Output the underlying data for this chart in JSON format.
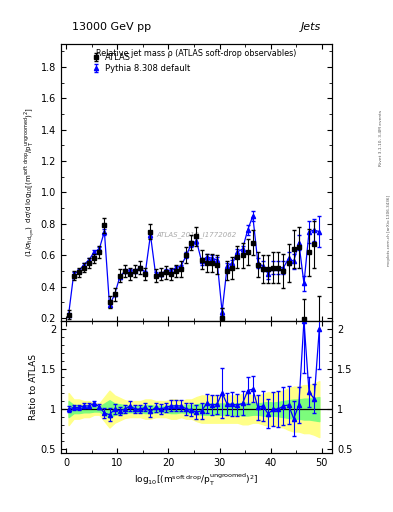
{
  "header_left": "13000 GeV pp",
  "header_right": "Jets",
  "right_label_top": "Rivet 3.1.10, 3.4M events",
  "right_label_bot": "mcplots.cern.ch [arXiv:1306.3436]",
  "inner_title": "Relative jet mass ρ (ATLAS soft-drop observables)",
  "watermark": "ATLAS_2019_I1772062",
  "legend_atlas": "ATLAS",
  "legend_pythia": "Pythia 8.308 default",
  "ylabel_ratio": "Ratio to ATLAS",
  "ylim_main": [
    0.18,
    1.95
  ],
  "ylim_ratio": [
    0.45,
    2.1
  ],
  "xlim": [
    -1.0,
    52.0
  ],
  "xticks": [
    0,
    10,
    20,
    30,
    40,
    50
  ],
  "yticks_main": [
    0.2,
    0.4,
    0.6,
    0.8,
    1.0,
    1.2,
    1.4,
    1.6,
    1.8
  ],
  "yticks_ratio": [
    0.5,
    1.0,
    1.5,
    2.0
  ],
  "atlas_x": [
    0.5,
    1.5,
    2.5,
    3.5,
    4.5,
    5.5,
    6.5,
    7.5,
    8.5,
    9.5,
    10.5,
    11.5,
    12.5,
    13.5,
    14.5,
    15.5,
    16.5,
    17.5,
    18.5,
    19.5,
    20.5,
    21.5,
    22.5,
    23.5,
    24.5,
    25.5,
    26.5,
    27.5,
    28.5,
    29.5,
    30.5,
    31.5,
    32.5,
    33.5,
    34.5,
    35.5,
    36.5,
    37.5,
    38.5,
    39.5,
    40.5,
    41.5,
    42.5,
    43.5,
    44.5,
    45.5,
    46.5,
    47.5,
    48.5,
    49.5
  ],
  "atlas_y": [
    0.22,
    0.47,
    0.49,
    0.52,
    0.55,
    0.58,
    0.62,
    0.79,
    0.3,
    0.35,
    0.47,
    0.5,
    0.48,
    0.5,
    0.52,
    0.48,
    0.75,
    0.47,
    0.48,
    0.49,
    0.48,
    0.5,
    0.51,
    0.6,
    0.68,
    0.72,
    0.57,
    0.55,
    0.55,
    0.54,
    0.2,
    0.5,
    0.52,
    0.59,
    0.6,
    0.62,
    0.68,
    0.54,
    0.51,
    0.51,
    0.52,
    0.52,
    0.5,
    0.55,
    0.64,
    0.65,
    0.19,
    0.62,
    0.67,
    0.16
  ],
  "atlas_yerr": [
    0.03,
    0.03,
    0.03,
    0.03,
    0.03,
    0.03,
    0.04,
    0.05,
    0.04,
    0.04,
    0.04,
    0.04,
    0.04,
    0.04,
    0.04,
    0.04,
    0.05,
    0.04,
    0.04,
    0.04,
    0.04,
    0.04,
    0.05,
    0.05,
    0.05,
    0.06,
    0.06,
    0.06,
    0.06,
    0.06,
    0.06,
    0.06,
    0.07,
    0.07,
    0.08,
    0.08,
    0.08,
    0.08,
    0.09,
    0.09,
    0.1,
    0.1,
    0.11,
    0.12,
    0.12,
    0.13,
    0.13,
    0.15,
    0.15,
    0.18
  ],
  "pythia_x": [
    0.5,
    1.5,
    2.5,
    3.5,
    4.5,
    5.5,
    6.5,
    7.5,
    8.5,
    9.5,
    10.5,
    11.5,
    12.5,
    13.5,
    14.5,
    15.5,
    16.5,
    17.5,
    18.5,
    19.5,
    20.5,
    21.5,
    22.5,
    23.5,
    24.5,
    25.5,
    26.5,
    27.5,
    28.5,
    29.5,
    30.5,
    31.5,
    32.5,
    33.5,
    34.5,
    35.5,
    36.5,
    37.5,
    38.5,
    39.5,
    40.5,
    41.5,
    42.5,
    43.5,
    44.5,
    45.5,
    46.5,
    47.5,
    48.5,
    49.5
  ],
  "pythia_y": [
    0.22,
    0.48,
    0.5,
    0.54,
    0.57,
    0.62,
    0.64,
    0.75,
    0.28,
    0.35,
    0.46,
    0.5,
    0.5,
    0.5,
    0.52,
    0.49,
    0.73,
    0.48,
    0.48,
    0.5,
    0.5,
    0.52,
    0.53,
    0.6,
    0.67,
    0.69,
    0.56,
    0.59,
    0.58,
    0.57,
    0.24,
    0.53,
    0.55,
    0.62,
    0.64,
    0.76,
    0.85,
    0.55,
    0.53,
    0.48,
    0.52,
    0.52,
    0.52,
    0.58,
    0.56,
    0.68,
    0.42,
    0.75,
    0.76,
    0.75
  ],
  "pythia_yerr": [
    0.01,
    0.01,
    0.01,
    0.01,
    0.01,
    0.01,
    0.01,
    0.02,
    0.01,
    0.01,
    0.01,
    0.01,
    0.01,
    0.01,
    0.01,
    0.01,
    0.02,
    0.01,
    0.01,
    0.01,
    0.01,
    0.01,
    0.01,
    0.02,
    0.02,
    0.02,
    0.02,
    0.02,
    0.02,
    0.02,
    0.02,
    0.02,
    0.02,
    0.02,
    0.02,
    0.03,
    0.03,
    0.03,
    0.03,
    0.03,
    0.04,
    0.04,
    0.04,
    0.04,
    0.05,
    0.05,
    0.05,
    0.07,
    0.07,
    0.1
  ],
  "ratio_y": [
    1.0,
    1.02,
    1.02,
    1.04,
    1.04,
    1.07,
    1.03,
    0.95,
    0.93,
    1.0,
    0.98,
    1.0,
    1.04,
    1.0,
    1.0,
    1.02,
    0.97,
    1.02,
    1.0,
    1.02,
    1.04,
    1.04,
    1.04,
    1.0,
    0.99,
    0.96,
    0.98,
    1.07,
    1.05,
    1.06,
    1.2,
    1.06,
    1.06,
    1.05,
    1.07,
    1.23,
    1.25,
    1.02,
    1.04,
    0.94,
    1.0,
    1.0,
    1.04,
    1.05,
    0.88,
    1.05,
    2.21,
    1.21,
    1.13,
    2.0
  ],
  "ratio_yerr": [
    0.04,
    0.03,
    0.03,
    0.03,
    0.03,
    0.03,
    0.03,
    0.06,
    0.08,
    0.06,
    0.05,
    0.05,
    0.06,
    0.05,
    0.05,
    0.05,
    0.07,
    0.06,
    0.06,
    0.06,
    0.07,
    0.07,
    0.07,
    0.08,
    0.08,
    0.09,
    0.1,
    0.12,
    0.12,
    0.12,
    0.31,
    0.14,
    0.15,
    0.14,
    0.15,
    0.17,
    0.16,
    0.16,
    0.19,
    0.18,
    0.21,
    0.22,
    0.24,
    0.24,
    0.22,
    0.23,
    0.65,
    0.19,
    0.18,
    0.5
  ],
  "band_green_lo": [
    0.9,
    0.95,
    0.95,
    0.96,
    0.96,
    0.97,
    0.97,
    0.93,
    0.89,
    0.93,
    0.94,
    0.95,
    0.96,
    0.96,
    0.96,
    0.95,
    0.95,
    0.96,
    0.96,
    0.96,
    0.95,
    0.95,
    0.96,
    0.95,
    0.95,
    0.94,
    0.93,
    0.93,
    0.93,
    0.93,
    0.93,
    0.93,
    0.93,
    0.93,
    0.92,
    0.92,
    0.93,
    0.93,
    0.92,
    0.91,
    0.92,
    0.91,
    0.9,
    0.89,
    0.88,
    0.88,
    0.87,
    0.87,
    0.86,
    0.85
  ],
  "band_green_hi": [
    1.1,
    1.05,
    1.05,
    1.04,
    1.04,
    1.03,
    1.03,
    1.07,
    1.11,
    1.07,
    1.06,
    1.05,
    1.04,
    1.04,
    1.04,
    1.05,
    1.05,
    1.04,
    1.04,
    1.04,
    1.05,
    1.05,
    1.04,
    1.05,
    1.05,
    1.06,
    1.07,
    1.07,
    1.07,
    1.07,
    1.07,
    1.07,
    1.07,
    1.07,
    1.08,
    1.08,
    1.07,
    1.07,
    1.08,
    1.09,
    1.08,
    1.09,
    1.1,
    1.11,
    1.12,
    1.12,
    1.13,
    1.13,
    1.14,
    1.15
  ],
  "band_yellow_lo": [
    0.8,
    0.88,
    0.88,
    0.9,
    0.9,
    0.93,
    0.93,
    0.85,
    0.77,
    0.83,
    0.86,
    0.89,
    0.9,
    0.9,
    0.9,
    0.88,
    0.88,
    0.9,
    0.9,
    0.9,
    0.88,
    0.88,
    0.9,
    0.88,
    0.88,
    0.85,
    0.83,
    0.83,
    0.83,
    0.83,
    0.83,
    0.83,
    0.83,
    0.83,
    0.81,
    0.81,
    0.83,
    0.83,
    0.81,
    0.79,
    0.8,
    0.78,
    0.77,
    0.74,
    0.72,
    0.72,
    0.7,
    0.7,
    0.68,
    0.65
  ],
  "band_yellow_hi": [
    1.2,
    1.12,
    1.12,
    1.1,
    1.1,
    1.07,
    1.07,
    1.15,
    1.23,
    1.17,
    1.14,
    1.11,
    1.1,
    1.1,
    1.1,
    1.12,
    1.12,
    1.1,
    1.1,
    1.1,
    1.12,
    1.12,
    1.1,
    1.12,
    1.12,
    1.15,
    1.17,
    1.17,
    1.17,
    1.17,
    1.17,
    1.17,
    1.17,
    1.17,
    1.19,
    1.19,
    1.17,
    1.17,
    1.19,
    1.21,
    1.2,
    1.22,
    1.23,
    1.26,
    1.28,
    1.28,
    1.3,
    1.3,
    1.32,
    1.35
  ],
  "atlas_color": "black",
  "pythia_color": "blue",
  "green_band_color": "#7CFC7C",
  "yellow_band_color": "#FFFF88"
}
